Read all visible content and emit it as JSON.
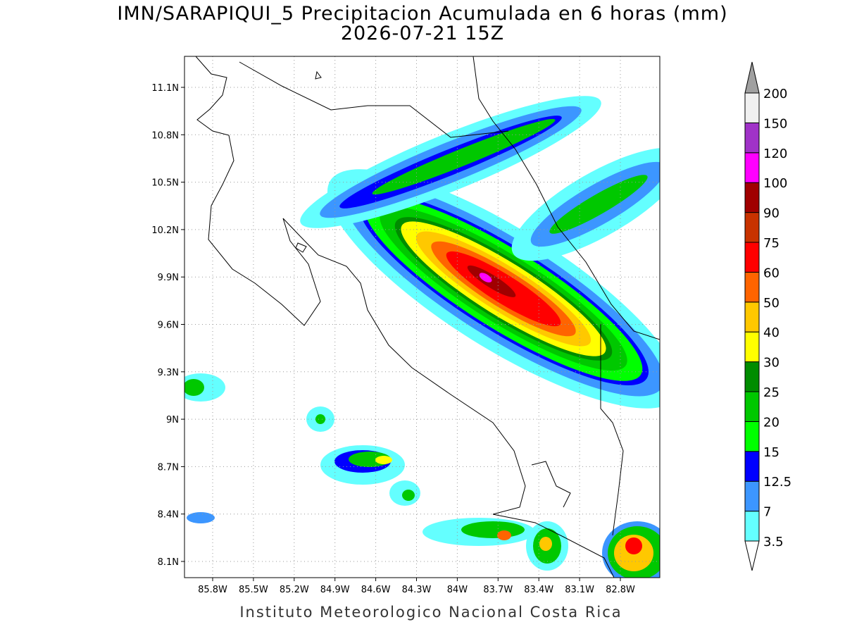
{
  "map": {
    "title": "IMN/SARAPIQUI_5 Precipitacion Acumulada en 6 horas (mm)",
    "subtitle": "2026-07-21 15Z",
    "lat_labels": [
      "11.1N",
      "10.8N",
      "10.5N",
      "10.2N",
      "9.9N",
      "9.6N",
      "9.3N",
      "9N",
      "8.7N",
      "8.4N",
      "8.1N"
    ],
    "lon_labels": [
      "85.8W",
      "85.5W",
      "85.2W",
      "84.9W",
      "84.6W",
      "84.3W",
      "84W",
      "83.7W",
      "83.4W",
      "83.1W",
      "82.8W"
    ],
    "footer": "Instituto Meteorologico Nacional Costa Rica"
  },
  "colorbar": {
    "levels": [
      3.5,
      7,
      12.5,
      15,
      20,
      25,
      30,
      40,
      50,
      60,
      75,
      90,
      100,
      120,
      150,
      200
    ],
    "colors": [
      "#ffffff",
      "#64ffff",
      "#3c96ff",
      "#0000ff",
      "#00ff00",
      "#00c800",
      "#008c00",
      "#ffff00",
      "#ffc800",
      "#ff6400",
      "#ff0000",
      "#c83200",
      "#a00000",
      "#ff00ff",
      "#a032c8",
      "#f0f0f0",
      "#a0a0a0"
    ]
  }
}
